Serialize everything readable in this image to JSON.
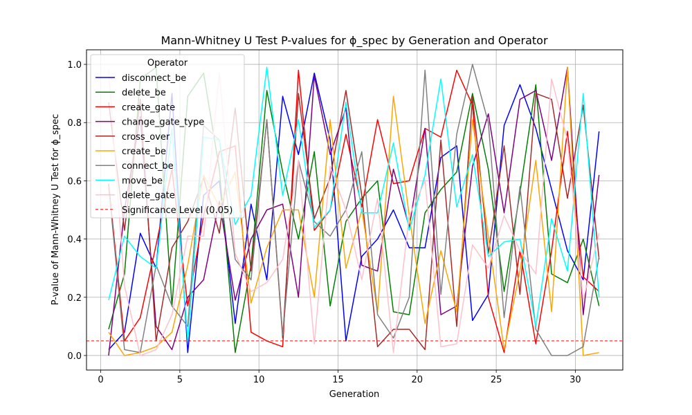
{
  "chart_data": {
    "type": "line",
    "title": "Mann-Whitney U Test P-values for ϕ_spec by Generation and Operator",
    "xlabel": "Generation",
    "ylabel": "P-value of Mann-Whitney U Test for ϕ_spec",
    "xlim": [
      -0.9,
      33.0
    ],
    "ylim": [
      -0.05,
      1.05
    ],
    "xticks": [
      0,
      5,
      10,
      15,
      20,
      25,
      30
    ],
    "yticks": [
      0.0,
      0.2,
      0.4,
      0.6,
      0.8,
      1.0
    ],
    "xtick_labels": [
      "0",
      "5",
      "10",
      "15",
      "20",
      "25",
      "30"
    ],
    "ytick_labels": [
      "0.0",
      "0.2",
      "0.4",
      "0.6",
      "0.8",
      "1.0"
    ],
    "grid": true,
    "legend_title": "Operator",
    "legend_position": "upper-left",
    "x": [
      0.5,
      1.5,
      2.5,
      3.5,
      4.5,
      5.5,
      6.5,
      7.5,
      8.5,
      9.5,
      10.5,
      11.5,
      12.5,
      13.5,
      14.5,
      15.5,
      16.5,
      17.5,
      18.5,
      19.5,
      20.5,
      21.5,
      22.5,
      23.5,
      24.5,
      25.5,
      26.5,
      27.5,
      28.5,
      29.5,
      30.5,
      31.5
    ],
    "series": [
      {
        "name": "disconnect_be",
        "color": "#0000ff",
        "values": [
          0.02,
          0.08,
          0.42,
          0.3,
          0.9,
          0.01,
          0.55,
          0.6,
          0.11,
          0.52,
          0.26,
          0.89,
          0.69,
          0.97,
          0.74,
          0.05,
          0.34,
          0.4,
          0.5,
          0.37,
          0.37,
          0.68,
          0.72,
          0.12,
          0.21,
          0.79,
          0.93,
          0.78,
          0.57,
          0.36,
          0.26,
          0.77
        ]
      },
      {
        "name": "delete_be",
        "color": "#008000",
        "values": [
          0.09,
          0.28,
          0.95,
          0.99,
          0.17,
          0.89,
          0.97,
          0.64,
          0.01,
          0.31,
          0.91,
          0.63,
          0.4,
          0.7,
          0.17,
          0.46,
          0.54,
          0.6,
          0.15,
          0.14,
          0.49,
          0.57,
          0.63,
          0.9,
          0.64,
          0.22,
          0.56,
          0.93,
          0.28,
          0.25,
          0.4,
          0.17
        ]
      },
      {
        "name": "create_gate",
        "color": "#ff0000",
        "values": [
          0.59,
          0.05,
          0.13,
          0.38,
          0.64,
          0.17,
          0.48,
          0.7,
          0.72,
          0.08,
          0.05,
          0.03,
          0.98,
          0.43,
          0.5,
          0.76,
          0.51,
          0.81,
          0.59,
          0.6,
          0.78,
          0.75,
          0.98,
          0.86,
          0.2,
          0.01,
          0.36,
          0.04,
          0.36,
          0.77,
          0.27,
          0.22
        ]
      },
      {
        "name": "change_gate_type",
        "color": "#800080",
        "values": [
          0.0,
          0.5,
          0.82,
          0.1,
          0.02,
          0.2,
          0.26,
          0.53,
          0.19,
          0.4,
          0.5,
          0.52,
          0.2,
          0.96,
          0.69,
          0.85,
          0.31,
          0.29,
          0.64,
          0.44,
          0.78,
          0.14,
          0.17,
          0.65,
          0.83,
          0.49,
          0.88,
          0.91,
          0.67,
          0.99,
          0.14,
          0.62
        ]
      },
      {
        "name": "cross_over",
        "color": "#a52a2a",
        "values": [
          0.87,
          0.43,
          0.88,
          0.05,
          0.37,
          0.46,
          0.61,
          0.42,
          0.85,
          0.29,
          0.81,
          0.06,
          0.9,
          0.47,
          0.61,
          0.91,
          0.55,
          0.03,
          0.09,
          0.09,
          0.02,
          0.74,
          0.1,
          0.89,
          0.35,
          0.72,
          0.21,
          0.9,
          0.88,
          0.54,
          0.86,
          0.33
        ]
      },
      {
        "name": "create_be",
        "color": "#ffa500",
        "values": [
          0.08,
          0.0,
          0.01,
          0.03,
          0.08,
          0.31,
          0.62,
          0.51,
          0.63,
          0.18,
          0.37,
          0.5,
          0.5,
          0.2,
          0.81,
          0.3,
          0.5,
          0.15,
          0.89,
          0.48,
          0.11,
          0.36,
          0.15,
          0.81,
          0.41,
          0.02,
          0.29,
          0.67,
          0.15,
          0.99,
          0.0,
          0.01
        ]
      },
      {
        "name": "connect_be",
        "color": "#808080",
        "values": [
          0.58,
          0.02,
          0.01,
          0.31,
          0.17,
          0.1,
          0.79,
          0.74,
          0.33,
          0.26,
          0.81,
          0.07,
          0.67,
          0.46,
          0.41,
          0.5,
          0.7,
          0.14,
          0.06,
          0.2,
          0.98,
          0.21,
          0.76,
          1.0,
          0.8,
          0.13,
          0.58,
          0.09,
          0.0,
          0.0,
          0.03,
          0.34
        ]
      },
      {
        "name": "move_be",
        "color": "#00ffff",
        "values": [
          0.19,
          0.41,
          0.34,
          0.3,
          0.78,
          0.05,
          0.75,
          0.74,
          0.45,
          0.55,
          0.99,
          0.55,
          0.81,
          0.44,
          0.5,
          0.87,
          0.49,
          0.49,
          0.73,
          0.43,
          0.62,
          0.95,
          0.51,
          0.69,
          0.34,
          0.39,
          0.4,
          0.1,
          0.47,
          0.29,
          0.9,
          0.2
        ]
      },
      {
        "name": "delete_gate",
        "color": "#ffc0cb",
        "values": [
          0.98,
          0.24,
          0.0,
          0.02,
          0.14,
          0.41,
          0.41,
          0.97,
          0.35,
          0.22,
          0.25,
          0.33,
          0.67,
          0.04,
          0.65,
          0.5,
          0.26,
          0.54,
          0.01,
          0.48,
          0.6,
          0.03,
          0.04,
          0.38,
          0.3,
          0.48,
          0.36,
          0.28,
          0.95,
          0.74,
          0.19,
          0.42
        ]
      }
    ],
    "reference_line": {
      "name": "Significance Level (0.05)",
      "y": 0.05,
      "color": "#ff0000",
      "style": "dashed"
    }
  }
}
